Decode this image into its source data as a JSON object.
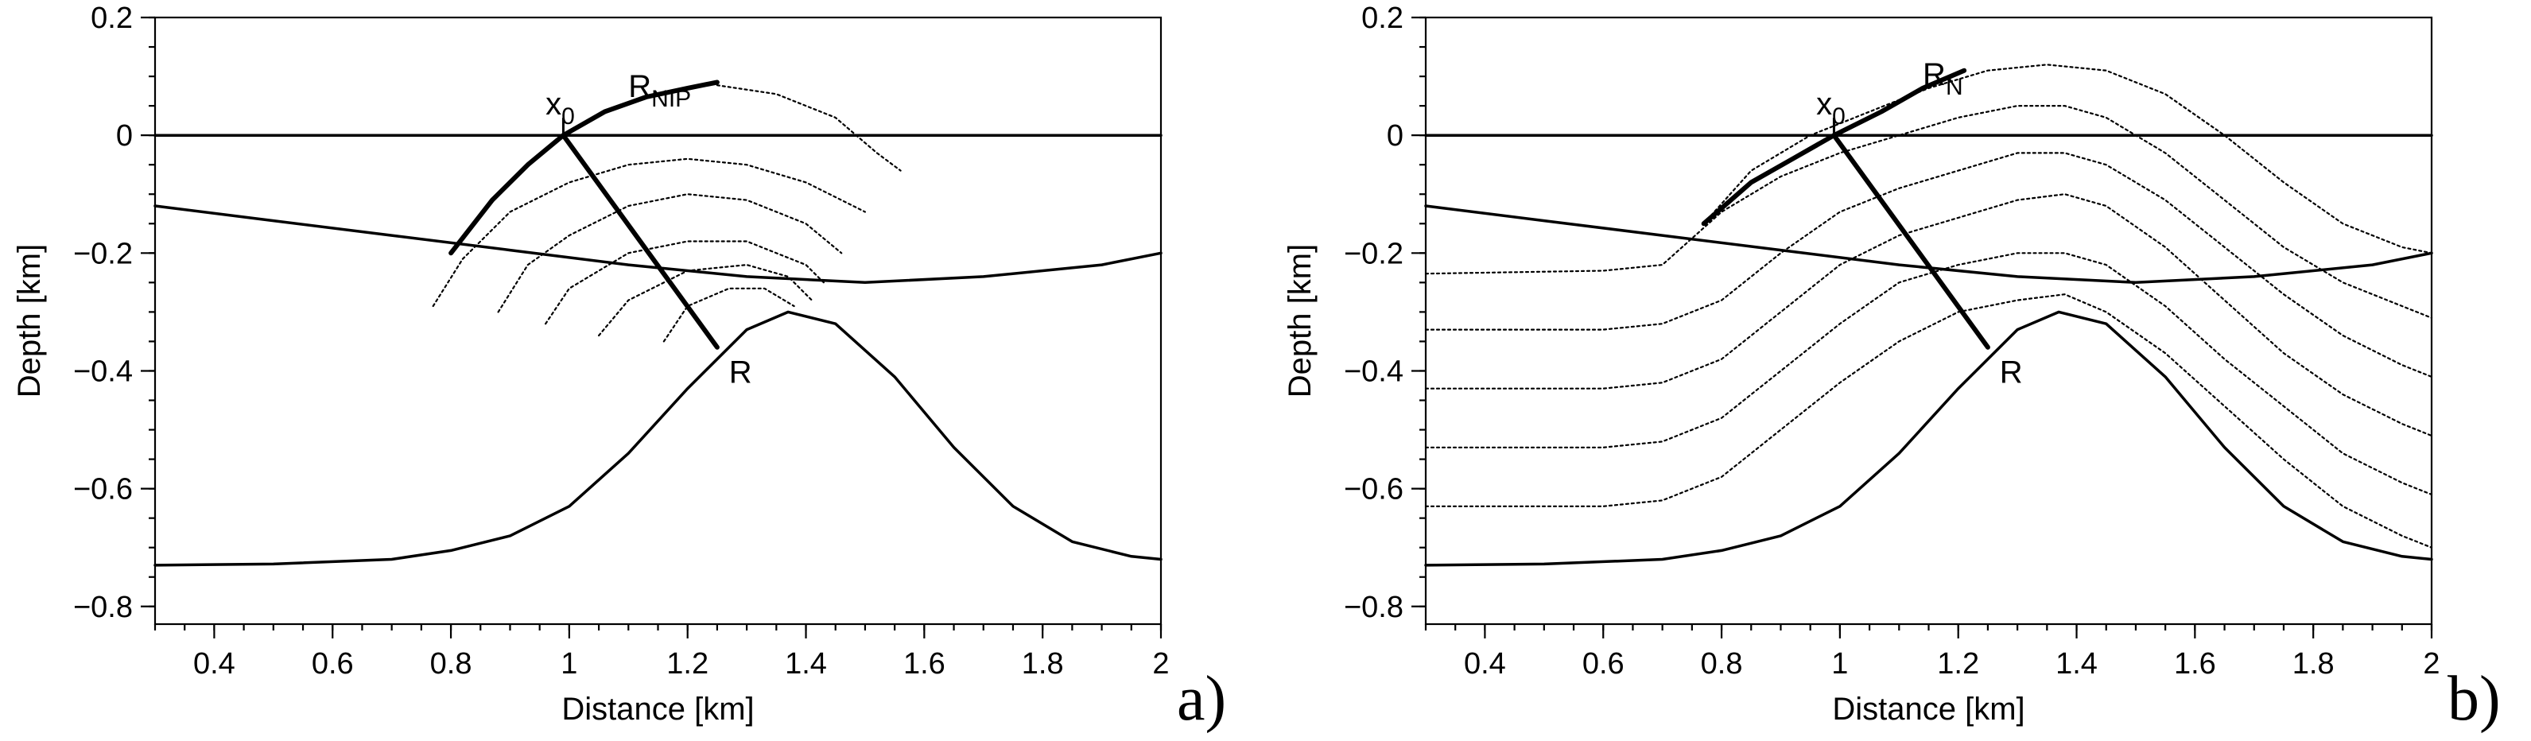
{
  "chart_data": [
    {
      "type": "line",
      "panel": "a)",
      "xlabel": "Distance [km]",
      "ylabel": "Depth [km]",
      "xlim": [
        0.3,
        2.0
      ],
      "ylim": [
        -0.83,
        0.2
      ],
      "xticks": [
        "0.4",
        "0.6",
        "0.8",
        "1",
        "1.2",
        "1.4",
        "1.6",
        "1.8",
        "2"
      ],
      "yticks": [
        "0.2",
        "0",
        "−0.2",
        "−0.4",
        "−0.6",
        "−0.8"
      ],
      "grid": false,
      "series": [
        {
          "style": "solid",
          "x": [
            0.3,
            2.0
          ],
          "y": [
            0.0,
            0.0
          ]
        },
        {
          "style": "solid",
          "x": [
            0.3,
            0.5,
            0.7,
            0.9,
            1.1,
            1.3,
            1.5,
            1.7,
            1.9,
            2.0
          ],
          "y": [
            -0.12,
            -0.145,
            -0.17,
            -0.195,
            -0.22,
            -0.24,
            -0.25,
            -0.24,
            -0.22,
            -0.2
          ]
        },
        {
          "style": "solid",
          "x": [
            0.3,
            0.5,
            0.7,
            0.8,
            0.9,
            1.0,
            1.1,
            1.2,
            1.3,
            1.37,
            1.45,
            1.55,
            1.65,
            1.75,
            1.85,
            1.95,
            2.0
          ],
          "y": [
            -0.73,
            -0.728,
            -0.72,
            -0.705,
            -0.68,
            -0.63,
            -0.54,
            -0.43,
            -0.33,
            -0.3,
            -0.32,
            -0.41,
            -0.53,
            -0.63,
            -0.69,
            -0.715,
            -0.72
          ]
        },
        {
          "style": "bold",
          "x": [
            0.99,
            1.25
          ],
          "y": [
            0.0,
            -0.36
          ]
        },
        {
          "style": "bold",
          "x": [
            0.8,
            0.87,
            0.93,
            0.99,
            1.06,
            1.13,
            1.2,
            1.25
          ],
          "y": [
            -0.2,
            -0.11,
            -0.05,
            0.0,
            0.04,
            0.065,
            0.08,
            0.09
          ]
        },
        {
          "style": "dotted",
          "x": [
            1.25,
            1.35,
            1.45,
            1.52,
            1.56
          ],
          "y": [
            0.085,
            0.07,
            0.03,
            -0.03,
            -0.06
          ]
        },
        {
          "style": "dotted",
          "x": [
            0.77,
            0.82,
            0.9,
            1.0,
            1.1,
            1.2,
            1.3,
            1.4,
            1.5
          ],
          "y": [
            -0.29,
            -0.21,
            -0.13,
            -0.08,
            -0.05,
            -0.04,
            -0.05,
            -0.08,
            -0.13
          ]
        },
        {
          "style": "dotted",
          "x": [
            0.88,
            0.93,
            1.0,
            1.1,
            1.2,
            1.3,
            1.4,
            1.46
          ],
          "y": [
            -0.3,
            -0.22,
            -0.17,
            -0.12,
            -0.1,
            -0.11,
            -0.15,
            -0.2
          ]
        },
        {
          "style": "dotted",
          "x": [
            0.96,
            1.0,
            1.1,
            1.2,
            1.3,
            1.4,
            1.43
          ],
          "y": [
            -0.32,
            -0.26,
            -0.2,
            -0.18,
            -0.18,
            -0.22,
            -0.25
          ]
        },
        {
          "style": "dotted",
          "x": [
            1.05,
            1.1,
            1.2,
            1.3,
            1.37,
            1.41
          ],
          "y": [
            -0.34,
            -0.28,
            -0.23,
            -0.22,
            -0.24,
            -0.28
          ]
        },
        {
          "style": "dotted",
          "x": [
            1.16,
            1.2,
            1.27,
            1.33,
            1.38
          ],
          "y": [
            -0.35,
            -0.29,
            -0.26,
            -0.26,
            -0.29
          ]
        }
      ],
      "annotations": [
        {
          "text": "x",
          "sub": "0",
          "x": 0.96,
          "y": 0.035
        },
        {
          "text": "R",
          "sub": "NIP",
          "x": 1.1,
          "y": 0.065
        },
        {
          "text": "R",
          "sub": "",
          "x": 1.27,
          "y": -0.42
        }
      ]
    },
    {
      "type": "line",
      "panel": "b)",
      "xlabel": "Distance [km]",
      "ylabel": "Depth [km]",
      "xlim": [
        0.3,
        2.0
      ],
      "ylim": [
        -0.83,
        0.2
      ],
      "xticks": [
        "0.4",
        "0.6",
        "0.8",
        "1",
        "1.2",
        "1.4",
        "1.6",
        "1.8",
        "2"
      ],
      "yticks": [
        "0.2",
        "0",
        "−0.2",
        "−0.4",
        "−0.6",
        "−0.8"
      ],
      "grid": false,
      "series": [
        {
          "style": "solid",
          "x": [
            0.3,
            2.0
          ],
          "y": [
            0.0,
            0.0
          ]
        },
        {
          "style": "solid",
          "x": [
            0.3,
            0.5,
            0.7,
            0.9,
            1.1,
            1.3,
            1.5,
            1.7,
            1.9,
            2.0
          ],
          "y": [
            -0.12,
            -0.145,
            -0.17,
            -0.195,
            -0.22,
            -0.24,
            -0.25,
            -0.24,
            -0.22,
            -0.2
          ]
        },
        {
          "style": "solid",
          "x": [
            0.3,
            0.5,
            0.7,
            0.8,
            0.9,
            1.0,
            1.1,
            1.2,
            1.3,
            1.37,
            1.45,
            1.55,
            1.65,
            1.75,
            1.85,
            1.95,
            2.0
          ],
          "y": [
            -0.73,
            -0.728,
            -0.72,
            -0.705,
            -0.68,
            -0.63,
            -0.54,
            -0.43,
            -0.33,
            -0.3,
            -0.32,
            -0.41,
            -0.53,
            -0.63,
            -0.69,
            -0.715,
            -0.72
          ]
        },
        {
          "style": "bold",
          "x": [
            0.99,
            1.25
          ],
          "y": [
            0.0,
            -0.36
          ]
        },
        {
          "style": "bold",
          "x": [
            0.77,
            0.85,
            0.92,
            0.99,
            1.07,
            1.14,
            1.21
          ],
          "y": [
            -0.15,
            -0.08,
            -0.04,
            0.0,
            0.04,
            0.08,
            0.11
          ]
        },
        {
          "style": "dotted",
          "x": [
            0.77,
            0.85,
            0.95,
            1.05,
            1.15,
            1.25,
            1.35,
            1.45,
            1.55,
            1.65,
            1.75,
            1.85,
            1.95,
            2.0
          ],
          "y": [
            -0.15,
            -0.06,
            0.0,
            0.04,
            0.08,
            0.11,
            0.12,
            0.11,
            0.07,
            0.0,
            -0.08,
            -0.15,
            -0.19,
            -0.2
          ]
        },
        {
          "style": "dotted",
          "x": [
            0.3,
            0.6,
            0.7,
            0.8,
            0.9,
            1.0,
            1.1,
            1.2,
            1.3,
            1.38,
            1.45,
            1.55,
            1.65,
            1.75,
            1.85,
            1.95,
            2.0
          ],
          "y": [
            -0.235,
            -0.23,
            -0.22,
            -0.13,
            -0.07,
            -0.03,
            0.0,
            0.03,
            0.05,
            0.05,
            0.03,
            -0.03,
            -0.11,
            -0.19,
            -0.25,
            -0.29,
            -0.31
          ]
        },
        {
          "style": "dotted",
          "x": [
            0.3,
            0.6,
            0.7,
            0.8,
            0.9,
            1.0,
            1.1,
            1.2,
            1.3,
            1.38,
            1.45,
            1.55,
            1.65,
            1.75,
            1.85,
            1.95,
            2.0
          ],
          "y": [
            -0.33,
            -0.33,
            -0.32,
            -0.28,
            -0.2,
            -0.13,
            -0.09,
            -0.06,
            -0.03,
            -0.03,
            -0.05,
            -0.11,
            -0.19,
            -0.27,
            -0.34,
            -0.39,
            -0.41
          ]
        },
        {
          "style": "dotted",
          "x": [
            0.3,
            0.6,
            0.7,
            0.8,
            0.9,
            1.0,
            1.1,
            1.2,
            1.3,
            1.38,
            1.45,
            1.55,
            1.65,
            1.75,
            1.85,
            1.95,
            2.0
          ],
          "y": [
            -0.43,
            -0.43,
            -0.42,
            -0.38,
            -0.3,
            -0.22,
            -0.17,
            -0.14,
            -0.11,
            -0.1,
            -0.12,
            -0.19,
            -0.28,
            -0.37,
            -0.44,
            -0.49,
            -0.51
          ]
        },
        {
          "style": "dotted",
          "x": [
            0.3,
            0.6,
            0.7,
            0.8,
            0.9,
            1.0,
            1.1,
            1.2,
            1.3,
            1.38,
            1.45,
            1.55,
            1.65,
            1.75,
            1.85,
            1.95,
            2.0
          ],
          "y": [
            -0.53,
            -0.53,
            -0.52,
            -0.48,
            -0.4,
            -0.32,
            -0.25,
            -0.22,
            -0.2,
            -0.2,
            -0.22,
            -0.29,
            -0.38,
            -0.46,
            -0.54,
            -0.59,
            -0.61
          ]
        },
        {
          "style": "dotted",
          "x": [
            0.3,
            0.6,
            0.7,
            0.8,
            0.9,
            1.0,
            1.1,
            1.2,
            1.3,
            1.38,
            1.45,
            1.55,
            1.65,
            1.75,
            1.85,
            1.95,
            2.0
          ],
          "y": [
            -0.63,
            -0.63,
            -0.62,
            -0.58,
            -0.5,
            -0.42,
            -0.35,
            -0.3,
            -0.28,
            -0.27,
            -0.3,
            -0.37,
            -0.46,
            -0.55,
            -0.63,
            -0.68,
            -0.7
          ]
        }
      ],
      "annotations": [
        {
          "text": "x",
          "sub": "0",
          "x": 0.96,
          "y": 0.035
        },
        {
          "text": "R",
          "sub": "N",
          "x": 1.14,
          "y": 0.085
        },
        {
          "text": "R",
          "sub": "",
          "x": 1.27,
          "y": -0.42
        }
      ]
    }
  ]
}
